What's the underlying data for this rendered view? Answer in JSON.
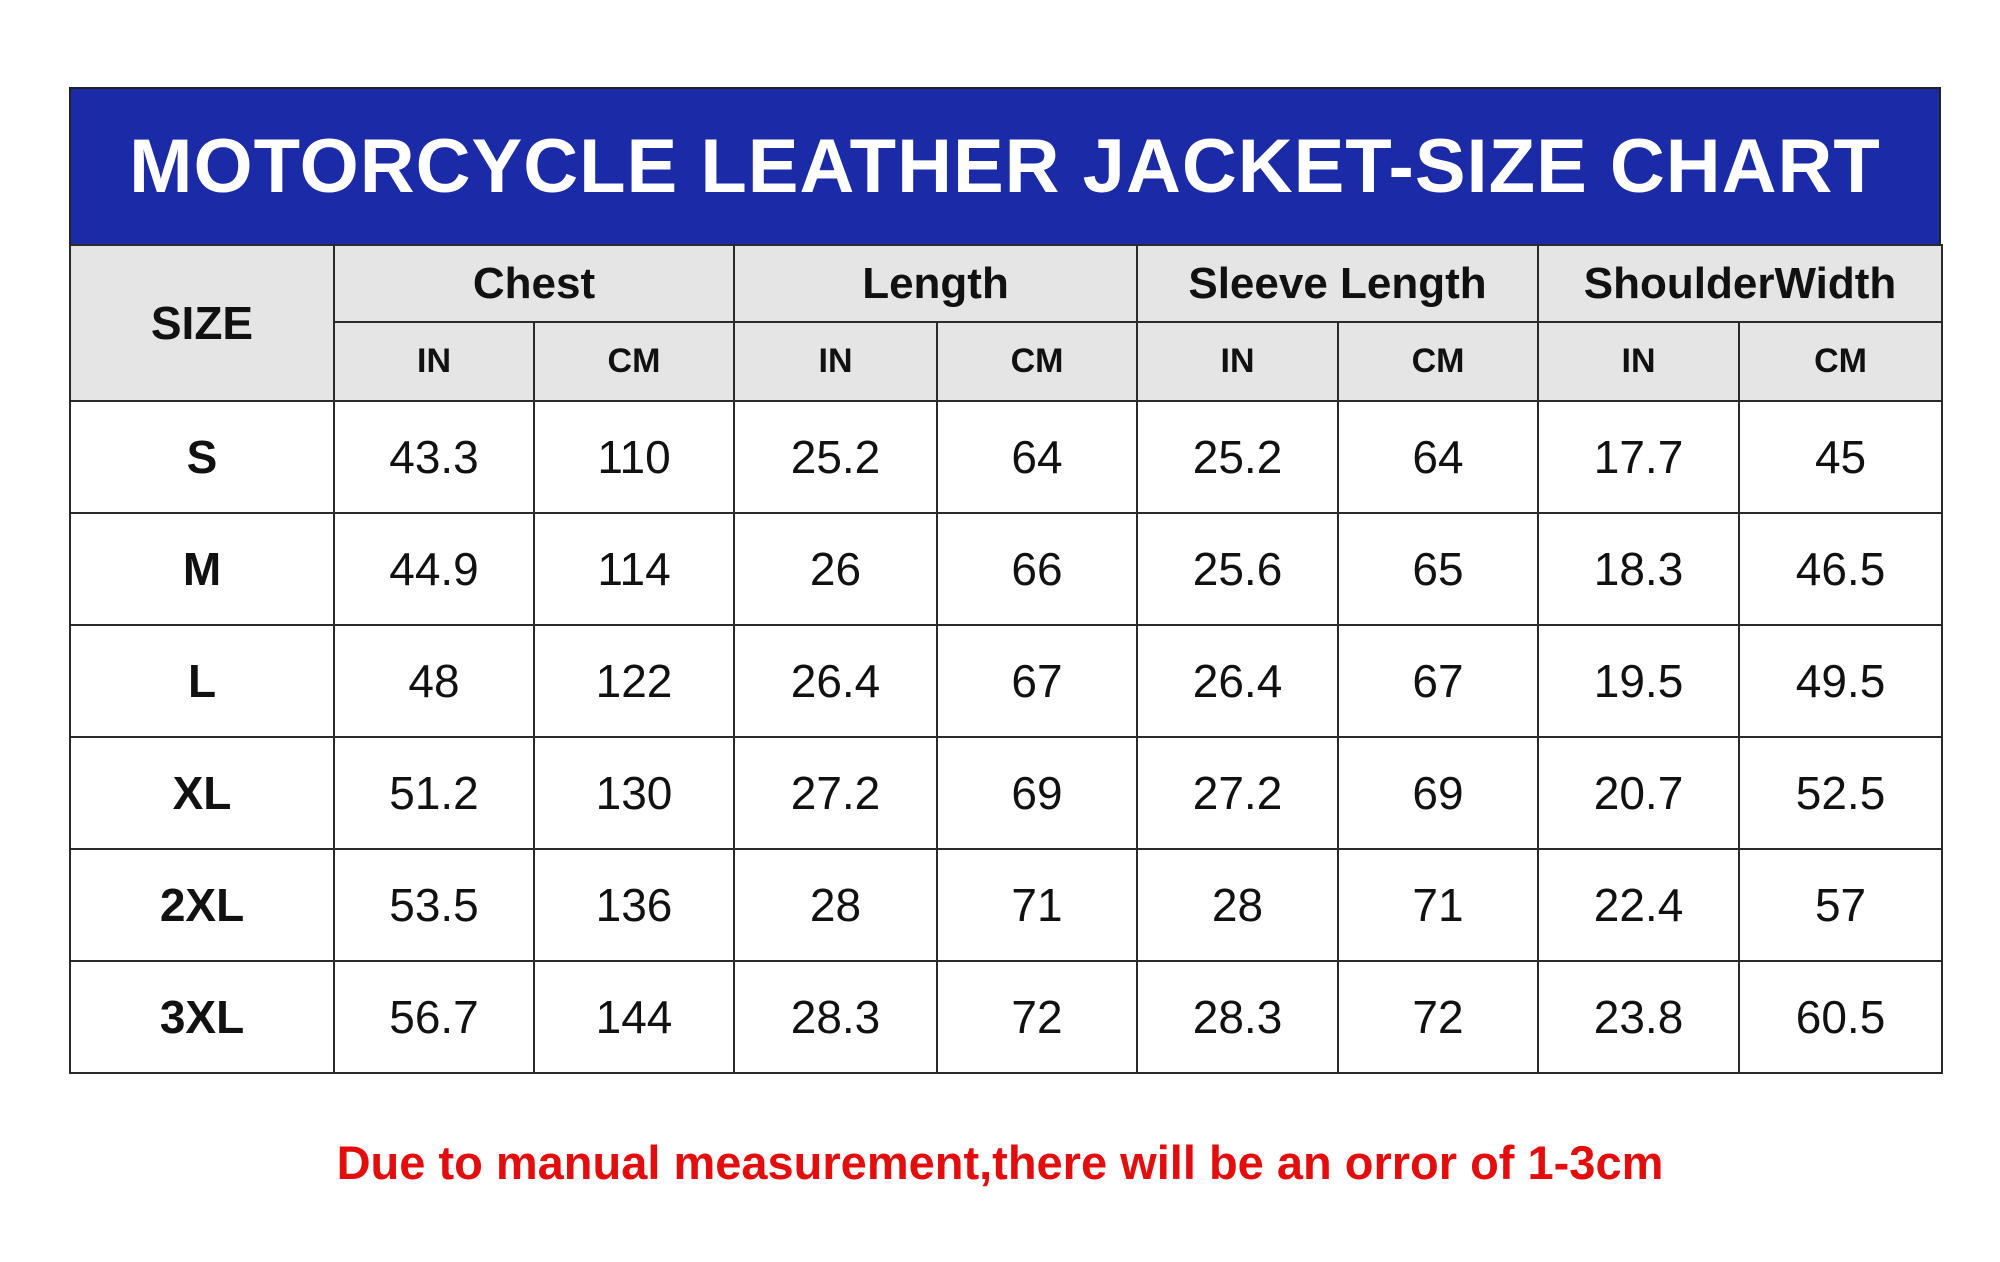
{
  "title": "MOTORCYCLE LEATHER JACKET-SIZE CHART",
  "table": {
    "size_header": "SIZE",
    "groups": [
      {
        "label": "Chest",
        "units": [
          "IN",
          "CM"
        ]
      },
      {
        "label": "Length",
        "units": [
          "IN",
          "CM"
        ]
      },
      {
        "label": "Sleeve Length",
        "units": [
          "IN",
          "CM"
        ]
      },
      {
        "label": "ShoulderWidth",
        "units": [
          "IN",
          "CM"
        ]
      }
    ],
    "rows": [
      {
        "size": "S",
        "values": [
          43.3,
          110,
          25.2,
          64,
          25.2,
          64,
          17.7,
          45
        ]
      },
      {
        "size": "M",
        "values": [
          44.9,
          114,
          26,
          66,
          25.6,
          65,
          18.3,
          46.5
        ]
      },
      {
        "size": "L",
        "values": [
          48,
          122,
          26.4,
          67,
          26.4,
          67,
          19.5,
          49.5
        ]
      },
      {
        "size": "XL",
        "values": [
          51.2,
          130,
          27.2,
          69,
          27.2,
          69,
          20.7,
          52.5
        ]
      },
      {
        "size": "2XL",
        "values": [
          53.5,
          136,
          28,
          71,
          28,
          71,
          22.4,
          57
        ]
      },
      {
        "size": "3XL",
        "values": [
          56.7,
          144,
          28.3,
          72,
          28.3,
          72,
          23.8,
          60.5
        ]
      }
    ]
  },
  "note": "Due to manual measurement,there will be an orror of 1-3cm"
}
